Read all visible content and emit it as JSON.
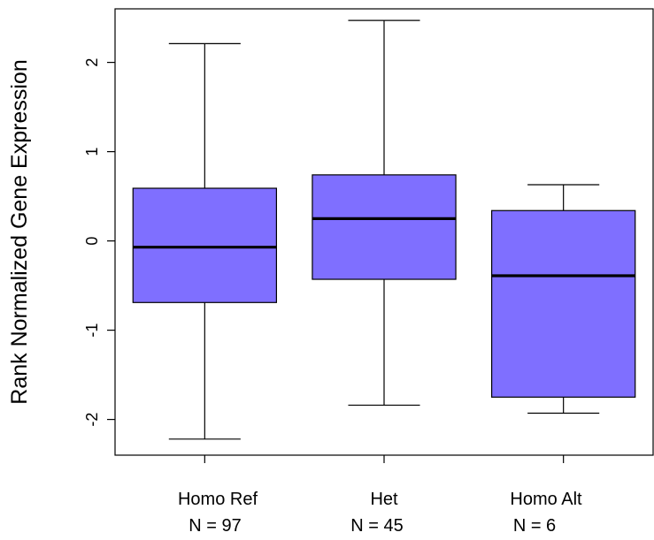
{
  "chart_data": {
    "type": "box",
    "title": "",
    "xlabel": "",
    "ylabel": "Rank Normalized Gene Expression",
    "ylim": [
      -2.4,
      2.6
    ],
    "yticks": [
      -2,
      -1,
      0,
      1,
      2
    ],
    "ytick_labels": [
      "-2",
      "-1",
      "0",
      "1",
      "2"
    ],
    "categories": [
      "Homo Ref",
      "Het",
      "Homo Alt"
    ],
    "counts": [
      "N = 97",
      "N = 45",
      "N = 6"
    ],
    "boxes": [
      {
        "category": "Homo Ref",
        "whisker_low": -2.22,
        "q1": -0.69,
        "median": -0.07,
        "q3": 0.59,
        "whisker_high": 2.21
      },
      {
        "category": "Het",
        "whisker_low": -1.84,
        "q1": -0.43,
        "median": 0.25,
        "q3": 0.74,
        "whisker_high": 2.47
      },
      {
        "category": "Homo Alt",
        "whisker_low": -1.93,
        "q1": -1.75,
        "median": -0.39,
        "q3": 0.34,
        "whisker_high": 0.63
      }
    ],
    "box_color": "#7f6fff",
    "grid": false,
    "legend": "none"
  }
}
